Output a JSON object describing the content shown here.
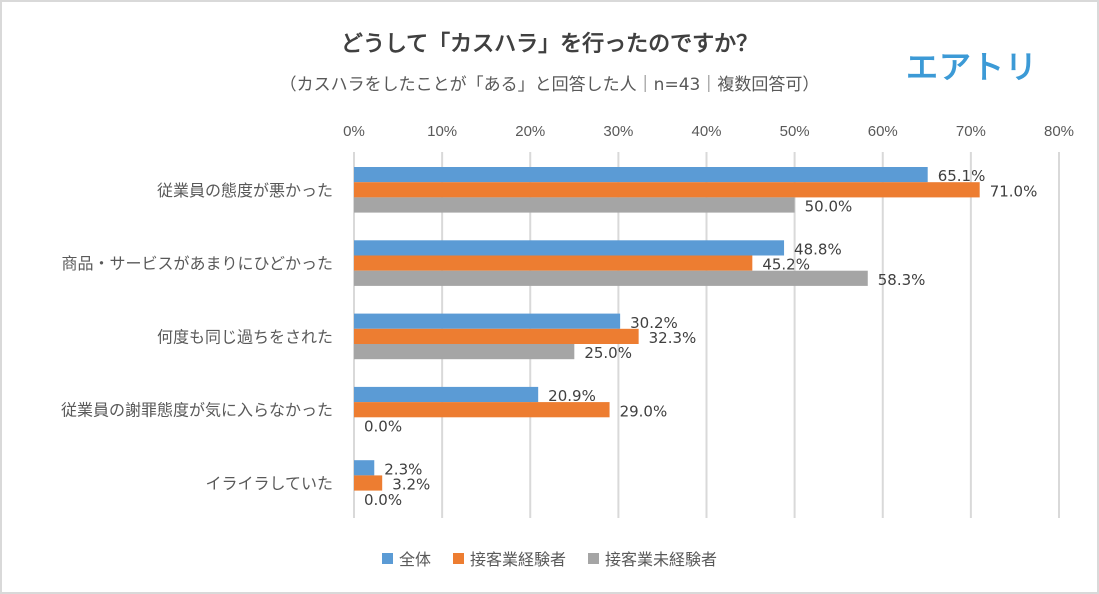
{
  "header": {
    "title": "どうして「カスハラ」を行ったのですか？",
    "subtitle": "（カスハラをしたことが「ある」と回答した人｜n=43｜複数回答可）",
    "logo": "エアトリ"
  },
  "chart_data": {
    "type": "bar",
    "orientation": "horizontal",
    "title": "どうして「カスハラ」を行ったのですか？",
    "subtitle": "（カスハラをしたことが「ある」と回答した人｜n=43｜複数回答可）",
    "categories": [
      "従業員の態度が悪かった",
      "商品・サービスがあまりにひどかった",
      "何度も同じ過ちをされた",
      "従業員の謝罪態度が気に入らなかった",
      "イライラしていた"
    ],
    "series": [
      {
        "name": "全体",
        "color": "#5b9bd5",
        "values": [
          65.1,
          48.8,
          30.2,
          20.9,
          2.3
        ]
      },
      {
        "name": "接客業経験者",
        "color": "#ed7d31",
        "values": [
          71.0,
          45.2,
          32.3,
          29.0,
          3.2
        ]
      },
      {
        "name": "接客業未経験者",
        "color": "#a5a5a5",
        "values": [
          50.0,
          58.3,
          25.0,
          0.0,
          0.0
        ]
      }
    ],
    "xlim": [
      0,
      80
    ],
    "xticks": [
      0,
      10,
      20,
      30,
      40,
      50,
      60,
      70,
      80
    ],
    "tick_labels": [
      "0%",
      "10%",
      "20%",
      "30%",
      "40%",
      "50%",
      "60%",
      "70%",
      "80%"
    ],
    "value_format": "{v}%",
    "grid": true,
    "legend_position": "bottom",
    "xlabel": "",
    "ylabel": ""
  }
}
